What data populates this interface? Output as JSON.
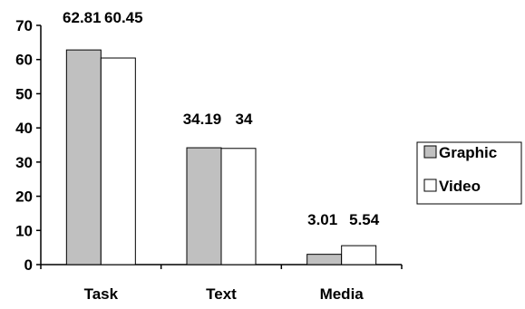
{
  "chart_data": {
    "type": "bar",
    "categories": [
      "Task",
      "Text",
      "Media"
    ],
    "series": [
      {
        "name": "Graphic",
        "values": [
          62.81,
          34.19,
          3.01
        ],
        "labels": [
          "62.81",
          "34.19",
          "3.01"
        ],
        "color": "#c0c0c0"
      },
      {
        "name": "Video",
        "values": [
          60.45,
          34,
          5.54
        ],
        "labels": [
          "60.45",
          "34",
          "5.54"
        ],
        "color": "#ffffff"
      }
    ],
    "y_ticks": [
      "0",
      "10",
      "20",
      "30",
      "40",
      "50",
      "60",
      "70"
    ],
    "ylim": [
      0,
      70
    ],
    "grid": false,
    "legend_position": "right",
    "axis_color": "#000000"
  }
}
